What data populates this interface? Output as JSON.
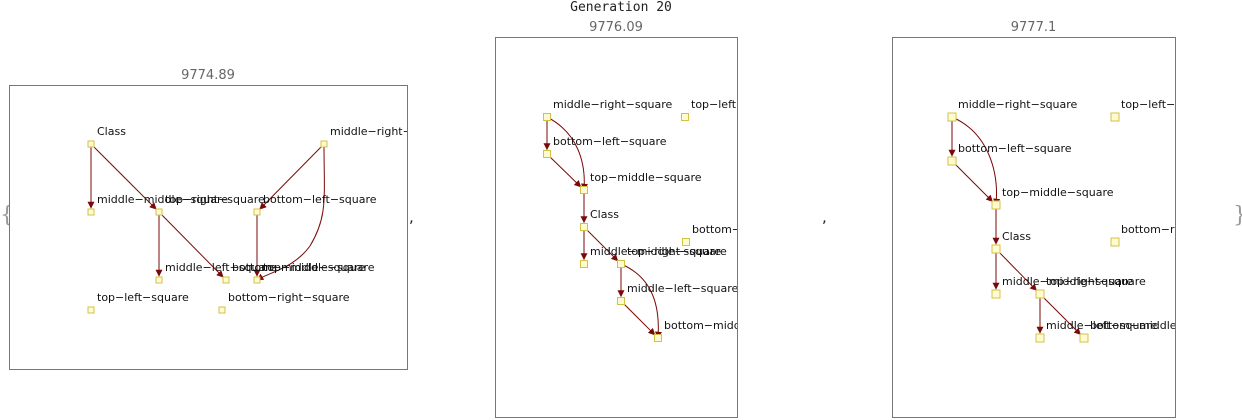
{
  "title": "Generation 20",
  "brace_open": "{",
  "brace_close": "}",
  "separator": ",",
  "colors": {
    "edge": "#7a0a0a",
    "node_fill": "#fffbd0",
    "node_stroke": "#d3c146",
    "frame": "#777777",
    "score": "#666666"
  },
  "graphs": [
    {
      "score": "9774.89",
      "nodes": [
        {
          "id": "n1",
          "label": "Class"
        },
        {
          "id": "n2",
          "label": "middle−right−square"
        },
        {
          "id": "n3",
          "label": "middle−middle−square"
        },
        {
          "id": "n4",
          "label": "top−right−square"
        },
        {
          "id": "n5",
          "label": "bottom−left−square"
        },
        {
          "id": "n6",
          "label": "middle−left−square"
        },
        {
          "id": "n7",
          "label": "bottom−middle−square"
        },
        {
          "id": "n8",
          "label": "top−middle−square"
        },
        {
          "id": "n9",
          "label": "top−left−square"
        },
        {
          "id": "n10",
          "label": "bottom−right−square"
        }
      ],
      "edges": [
        [
          "n1",
          "n3"
        ],
        [
          "n1",
          "n4"
        ],
        [
          "n2",
          "n5"
        ],
        [
          "n2",
          "n8"
        ],
        [
          "n4",
          "n6"
        ],
        [
          "n4",
          "n7"
        ],
        [
          "n5",
          "n8"
        ]
      ]
    },
    {
      "score": "9776.09",
      "nodes": [
        {
          "id": "a1",
          "label": "middle−right−square"
        },
        {
          "id": "a2",
          "label": "top−left−square"
        },
        {
          "id": "a3",
          "label": "bottom−left−square"
        },
        {
          "id": "a4",
          "label": "top−middle−square"
        },
        {
          "id": "a5",
          "label": "Class"
        },
        {
          "id": "a6",
          "label": "bottom−right−square"
        },
        {
          "id": "a7",
          "label": "middle−middle−square"
        },
        {
          "id": "a8",
          "label": "top−right−square"
        },
        {
          "id": "a9",
          "label": "middle−left−square"
        },
        {
          "id": "a10",
          "label": "bottom−middle−square"
        }
      ],
      "edges": [
        [
          "a1",
          "a3"
        ],
        [
          "a1",
          "a4"
        ],
        [
          "a3",
          "a4"
        ],
        [
          "a4",
          "a5"
        ],
        [
          "a5",
          "a7"
        ],
        [
          "a5",
          "a8"
        ],
        [
          "a8",
          "a9"
        ],
        [
          "a8",
          "a10"
        ],
        [
          "a9",
          "a10"
        ]
      ]
    },
    {
      "score": "9777.1",
      "nodes": [
        {
          "id": "b1",
          "label": "middle−right−square"
        },
        {
          "id": "b2",
          "label": "top−left−square"
        },
        {
          "id": "b3",
          "label": "bottom−left−square"
        },
        {
          "id": "b4",
          "label": "top−middle−square"
        },
        {
          "id": "b5",
          "label": "Class"
        },
        {
          "id": "b6",
          "label": "bottom−right−square"
        },
        {
          "id": "b7",
          "label": "middle−middle−square"
        },
        {
          "id": "b8",
          "label": "top−right−square"
        },
        {
          "id": "b9",
          "label": "middle−left−square"
        },
        {
          "id": "b10",
          "label": "bottom−middle−square"
        }
      ],
      "edges": [
        [
          "b1",
          "b3"
        ],
        [
          "b1",
          "b4"
        ],
        [
          "b3",
          "b4"
        ],
        [
          "b4",
          "b5"
        ],
        [
          "b5",
          "b7"
        ],
        [
          "b5",
          "b8"
        ],
        [
          "b8",
          "b9"
        ],
        [
          "b8",
          "b10"
        ]
      ]
    }
  ]
}
